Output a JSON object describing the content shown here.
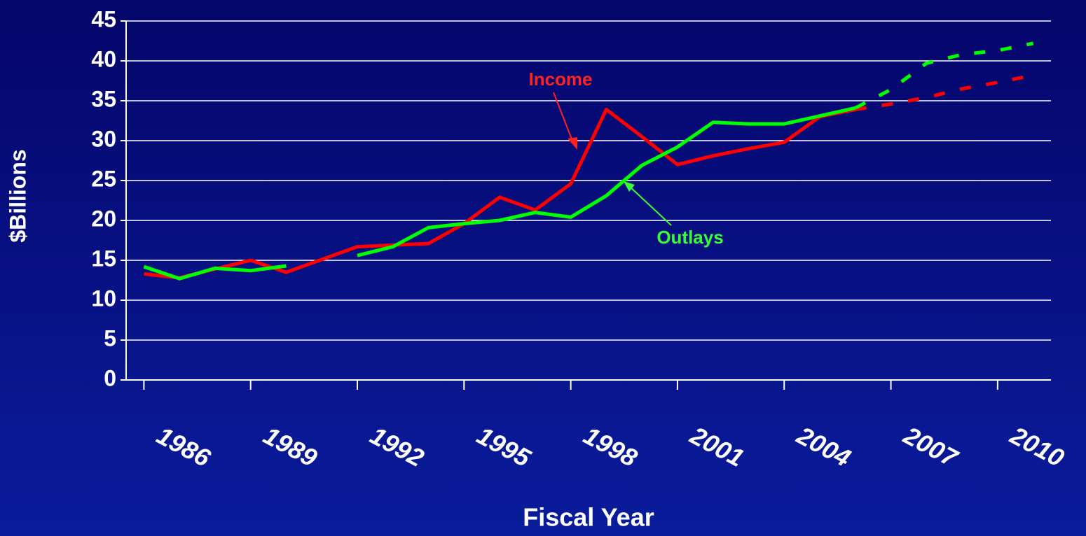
{
  "chart_data": {
    "type": "line",
    "x_label": "Fiscal Year",
    "y_label": "$Billions",
    "x": [
      1986,
      1987,
      1988,
      1989,
      1990,
      1991,
      1992,
      1993,
      1994,
      1995,
      1996,
      1997,
      1998,
      1999,
      2000,
      2001,
      2002,
      2003,
      2004,
      2005,
      2006,
      2007,
      2008,
      2009,
      2010,
      2011
    ],
    "xlim": [
      1985.5,
      2011.5
    ],
    "xticks": [
      1986,
      1989,
      1992,
      1995,
      1998,
      2001,
      2004,
      2007,
      2010
    ],
    "ylim": [
      0,
      45
    ],
    "yticks": [
      0,
      5,
      10,
      15,
      20,
      25,
      30,
      35,
      40,
      45
    ],
    "grid": true,
    "series": [
      {
        "name": "Income",
        "color": "#ff0000",
        "values": [
          13.3,
          12.8,
          13.9,
          15.0,
          13.5,
          15.1,
          16.7,
          16.9,
          17.1,
          19.6,
          22.9,
          21.3,
          24.6,
          33.9,
          30.5,
          27.0,
          28.1,
          29.0,
          29.8,
          33.0,
          33.9,
          null,
          null,
          null,
          null,
          null
        ],
        "projection": [
          null,
          null,
          null,
          null,
          null,
          null,
          null,
          null,
          null,
          null,
          null,
          null,
          null,
          null,
          null,
          null,
          null,
          null,
          null,
          null,
          33.9,
          34.6,
          35.4,
          36.5,
          37.3,
          38.2
        ]
      },
      {
        "name": "Outlays",
        "color": "#00ff00",
        "values": [
          14.2,
          12.7,
          14.0,
          13.7,
          14.3,
          null,
          15.6,
          16.7,
          19.1,
          19.6,
          20.0,
          21.0,
          20.4,
          23.1,
          26.9,
          29.2,
          32.3,
          32.1,
          32.1,
          33.1,
          34.1,
          null,
          null,
          null,
          null,
          null
        ],
        "projection": [
          null,
          null,
          null,
          null,
          null,
          null,
          null,
          null,
          null,
          null,
          null,
          null,
          null,
          null,
          null,
          null,
          null,
          null,
          null,
          null,
          34.1,
          36.4,
          39.7,
          40.8,
          41.3,
          42.2
        ]
      }
    ]
  }
}
